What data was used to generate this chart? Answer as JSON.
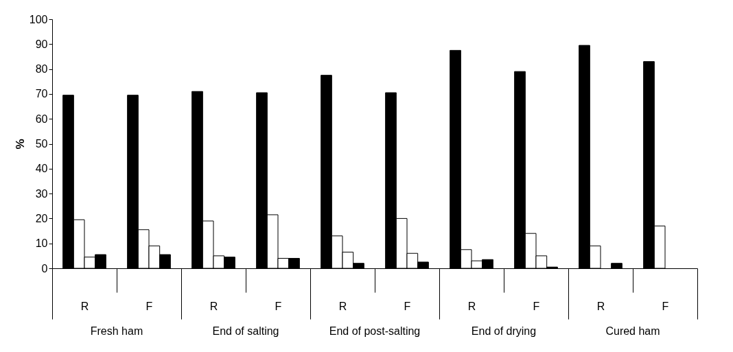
{
  "chart_data": {
    "type": "bar",
    "ylabel": "%",
    "categories": [
      "R",
      "F",
      "R",
      "F",
      "R",
      "F",
      "R",
      "F",
      "R",
      "F"
    ],
    "series": [
      {
        "color": "#000000",
        "values": [
          69.5,
          69.5,
          71,
          70.5,
          77.5,
          70.5,
          87.5,
          79,
          89.5,
          83
        ]
      },
      {
        "color": "#ffffff",
        "values": [
          19.5,
          15.5,
          19,
          21.5,
          13,
          20,
          7.5,
          14,
          9,
          17
        ]
      },
      {
        "color": "#ffffff",
        "values": [
          4.5,
          9,
          5,
          4,
          6.5,
          6,
          3,
          5,
          null,
          null
        ]
      },
      {
        "color": "#000000",
        "values": [
          5.5,
          5.5,
          4.5,
          4,
          2,
          2.5,
          3.5,
          0.5,
          2,
          null
        ]
      }
    ],
    "annotations": [
      "Fresh ham",
      "End of salting",
      "End of post-salting",
      "End of drying",
      "Cured ham"
    ],
    "ylim": [
      0,
      100
    ],
    "yticks": [
      0,
      10,
      20,
      30,
      40,
      50,
      60,
      70,
      80,
      90,
      100
    ],
    "grid": false,
    "legend": false
  }
}
